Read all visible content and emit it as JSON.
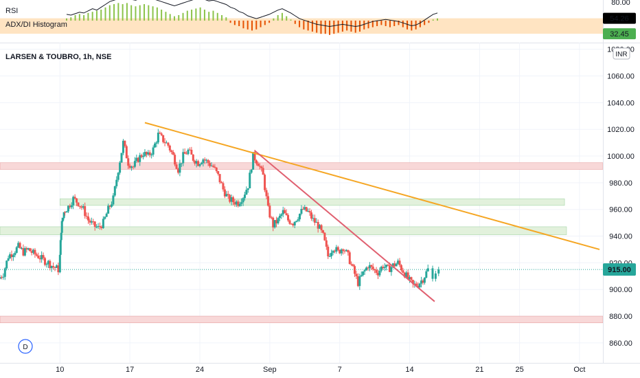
{
  "chart_data": [
    {
      "type": "line",
      "panel": "indicator",
      "legend": [
        "RSI",
        "ADX/DI Histogram"
      ],
      "ylim": [
        20,
        80
      ],
      "y_ticks": [
        80
      ],
      "band": [
        32.45,
        54.26
      ],
      "last_values": [
        {
          "label": "54.26",
          "color": "#000000"
        },
        {
          "label": "32.45",
          "color": "#4caf50"
        }
      ],
      "rsi": [
        52,
        51,
        53,
        55,
        54,
        57,
        60,
        58,
        62,
        66,
        70,
        72,
        74,
        73,
        75,
        73,
        72,
        74,
        76,
        75,
        74,
        72,
        70,
        68,
        66,
        64,
        66,
        68,
        70,
        72,
        74,
        75,
        73,
        71,
        72,
        70,
        68,
        66,
        62,
        60,
        56,
        54,
        50,
        48,
        46,
        48,
        50,
        52,
        55,
        58,
        60,
        57,
        54,
        50,
        46,
        44,
        42,
        40,
        38,
        37,
        36,
        35,
        36,
        37,
        38,
        37,
        36,
        35,
        36,
        38,
        40,
        42,
        43,
        44,
        45,
        44,
        43,
        42,
        40,
        38,
        36,
        37,
        40,
        44,
        48,
        52,
        54
      ],
      "histogram": [
        2,
        3,
        5,
        6,
        5,
        7,
        8,
        9,
        10,
        12,
        14,
        15,
        16,
        15,
        16,
        14,
        13,
        14,
        15,
        14,
        13,
        12,
        10,
        8,
        6,
        4,
        5,
        7,
        9,
        10,
        11,
        12,
        10,
        8,
        9,
        7,
        5,
        3,
        -2,
        -4,
        -5,
        -7,
        -8,
        -9,
        -8,
        -6,
        -4,
        -2,
        2,
        5,
        7,
        4,
        1,
        -3,
        -6,
        -8,
        -9,
        -10,
        -11,
        -12,
        -12,
        -13,
        -12,
        -11,
        -10,
        -9,
        -10,
        -11,
        -10,
        -8,
        -7,
        -6,
        -5,
        -4,
        -5,
        -6,
        -5,
        -4,
        -6,
        -8,
        -9,
        -8,
        -6,
        -4,
        -2,
        1,
        2
      ]
    },
    {
      "type": "candlestick",
      "title": "LARSEN & TOUBRO, 1h, NSE",
      "currency": "INR",
      "ylim": [
        845,
        1085
      ],
      "y_ticks": [
        1080,
        1060,
        1040,
        1020,
        1000,
        980,
        960,
        940,
        920,
        900,
        880,
        860
      ],
      "y_tick_labels": [
        "1080.00",
        "1060.00",
        "1040.00",
        "1020.00",
        "1000.00",
        "980.00",
        "960.00",
        "940.00",
        "920.00",
        "900.00",
        "880.00",
        "860.00"
      ],
      "x_ticks": [
        {
          "label": "10",
          "day": 6
        },
        {
          "label": "17",
          "day": 13
        },
        {
          "label": "24",
          "day": 20
        },
        {
          "label": "Sep",
          "day": 27
        },
        {
          "label": "7",
          "day": 34
        },
        {
          "label": "14",
          "day": 41
        },
        {
          "label": "21",
          "day": 48
        },
        {
          "label": "25",
          "day": 52
        },
        {
          "label": "Oct",
          "day": 58
        }
      ],
      "last_price": 915.0,
      "last_price_label": "915.00",
      "zones": [
        {
          "from": 990,
          "to": 995,
          "color": "#f7d4d4"
        },
        {
          "from": 963,
          "to": 968,
          "color": "#dff0d8"
        },
        {
          "from": 941,
          "to": 947,
          "color": "#dff0d8"
        },
        {
          "from": 875,
          "to": 880,
          "color": "#f7d4d4"
        }
      ],
      "trendlines": [
        {
          "color": "#f5a623",
          "start": {
            "day": 14.5,
            "price": 1025
          },
          "end": {
            "day": 60,
            "price": 930
          }
        },
        {
          "color": "#e06070",
          "start": {
            "day": 25.5,
            "price": 1004
          },
          "end": {
            "day": 43.5,
            "price": 891
          }
        }
      ],
      "close_path": [
        {
          "day": 0,
          "price": 908
        },
        {
          "day": 0.5,
          "price": 912
        },
        {
          "day": 1,
          "price": 925
        },
        {
          "day": 1.5,
          "price": 928
        },
        {
          "day": 2,
          "price": 932
        },
        {
          "day": 2.5,
          "price": 928
        },
        {
          "day": 3,
          "price": 930
        },
        {
          "day": 3.5,
          "price": 927
        },
        {
          "day": 4,
          "price": 925
        },
        {
          "day": 4.5,
          "price": 922
        },
        {
          "day": 5,
          "price": 920
        },
        {
          "day": 5.5,
          "price": 917
        },
        {
          "day": 6,
          "price": 915
        },
        {
          "day": 6.2,
          "price": 945
        },
        {
          "day": 6.5,
          "price": 958
        },
        {
          "day": 7,
          "price": 962
        },
        {
          "day": 7.5,
          "price": 968
        },
        {
          "day": 8,
          "price": 965
        },
        {
          "day": 8.5,
          "price": 960
        },
        {
          "day": 9,
          "price": 952
        },
        {
          "day": 9.5,
          "price": 948
        },
        {
          "day": 10,
          "price": 946
        },
        {
          "day": 10.5,
          "price": 950
        },
        {
          "day": 11,
          "price": 960
        },
        {
          "day": 11.5,
          "price": 968
        },
        {
          "day": 12,
          "price": 990
        },
        {
          "day": 12.5,
          "price": 1010
        },
        {
          "day": 13,
          "price": 995
        },
        {
          "day": 13.5,
          "price": 992
        },
        {
          "day": 14,
          "price": 998
        },
        {
          "day": 14.5,
          "price": 1002
        },
        {
          "day": 15,
          "price": 1000
        },
        {
          "day": 15.5,
          "price": 1005
        },
        {
          "day": 16,
          "price": 1016
        },
        {
          "day": 16.5,
          "price": 1012
        },
        {
          "day": 17,
          "price": 1008
        },
        {
          "day": 17.5,
          "price": 1000
        },
        {
          "day": 18,
          "price": 990
        },
        {
          "day": 18.5,
          "price": 1000
        },
        {
          "day": 19,
          "price": 1004
        },
        {
          "day": 19.5,
          "price": 998
        },
        {
          "day": 20,
          "price": 995
        },
        {
          "day": 20.5,
          "price": 998
        },
        {
          "day": 21,
          "price": 995
        },
        {
          "day": 21.5,
          "price": 992
        },
        {
          "day": 22,
          "price": 985
        },
        {
          "day": 22.5,
          "price": 975
        },
        {
          "day": 23,
          "price": 968
        },
        {
          "day": 23.5,
          "price": 966
        },
        {
          "day": 24,
          "price": 965
        },
        {
          "day": 24.5,
          "price": 970
        },
        {
          "day": 25,
          "price": 978
        },
        {
          "day": 25.5,
          "price": 1000
        },
        {
          "day": 26,
          "price": 995
        },
        {
          "day": 26.5,
          "price": 985
        },
        {
          "day": 27,
          "price": 960
        },
        {
          "day": 27.5,
          "price": 948
        },
        {
          "day": 28,
          "price": 952
        },
        {
          "day": 28.5,
          "price": 958
        },
        {
          "day": 29,
          "price": 952
        },
        {
          "day": 29.5,
          "price": 950
        },
        {
          "day": 30,
          "price": 955
        },
        {
          "day": 30.5,
          "price": 960
        },
        {
          "day": 31,
          "price": 958
        },
        {
          "day": 31.5,
          "price": 952
        },
        {
          "day": 32,
          "price": 948
        },
        {
          "day": 32.5,
          "price": 940
        },
        {
          "day": 33,
          "price": 925
        },
        {
          "day": 33.5,
          "price": 932
        },
        {
          "day": 34,
          "price": 928
        },
        {
          "day": 34.5,
          "price": 932
        },
        {
          "day": 35,
          "price": 925
        },
        {
          "day": 35.5,
          "price": 915
        },
        {
          "day": 36,
          "price": 905
        },
        {
          "day": 36.5,
          "price": 912
        },
        {
          "day": 37,
          "price": 918
        },
        {
          "day": 37.5,
          "price": 915
        },
        {
          "day": 38,
          "price": 913
        },
        {
          "day": 38.5,
          "price": 918
        },
        {
          "day": 39,
          "price": 915
        },
        {
          "day": 39.5,
          "price": 918
        },
        {
          "day": 40,
          "price": 920
        },
        {
          "day": 40.5,
          "price": 914
        },
        {
          "day": 41,
          "price": 908
        },
        {
          "day": 41.5,
          "price": 903
        },
        {
          "day": 42,
          "price": 904
        },
        {
          "day": 42.5,
          "price": 908
        },
        {
          "day": 43,
          "price": 915
        }
      ]
    }
  ],
  "ui": {
    "logo_letter": "D",
    "currency_badge": "INR"
  },
  "colors": {
    "up": "#26a69a",
    "down": "#ef5350",
    "band": "#ffe4c2",
    "price_line": "#26a69a",
    "grid": "#f0f3fa",
    "axis_border": "#e0e3eb",
    "logo": "#2962ff"
  }
}
